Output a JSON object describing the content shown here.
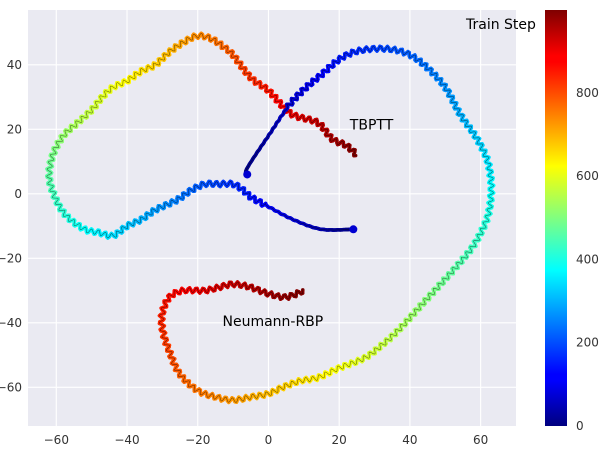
{
  "chart_data": {
    "type": "scatter",
    "title": "",
    "xlabel": "",
    "ylabel": "",
    "xlim": [
      -68,
      70
    ],
    "ylim": [
      -72,
      57
    ],
    "x_ticks": [
      -60,
      -40,
      -20,
      0,
      20,
      40,
      60
    ],
    "y_ticks": [
      -60,
      -40,
      -20,
      0,
      20,
      40
    ],
    "x_tick_labels": [
      "−60",
      "−40",
      "−20",
      "0",
      "20",
      "40",
      "60"
    ],
    "y_tick_labels": [
      "−60",
      "−40",
      "−20",
      "0",
      "20",
      "40"
    ],
    "grid": true,
    "colormap": "jet",
    "colorbar": {
      "label": "Train Step",
      "range": [
        0,
        999
      ],
      "ticks": [
        0,
        200,
        400,
        600,
        800
      ],
      "tick_labels": [
        "0",
        "200",
        "400",
        "600",
        "800"
      ]
    },
    "annotations": [
      {
        "text": "TBPTT",
        "x": 23,
        "y": 20
      },
      {
        "text": "Neumann-RBP",
        "x": -13,
        "y": -41
      }
    ],
    "series": [
      {
        "name": "TBPTT",
        "label": "TBPTT",
        "step_range": [
          0,
          999
        ],
        "x": [
          24,
          15,
          7,
          0,
          -5,
          -7,
          -10,
          -14,
          -18,
          -22,
          -26,
          -32,
          -36,
          -40,
          -44,
          -48,
          -52,
          -57,
          -60,
          -62,
          -61,
          -58,
          -54,
          -50,
          -47,
          -44,
          -40,
          -36,
          -32,
          -28,
          -24,
          -20,
          -16,
          -12,
          -10,
          -5,
          0,
          5,
          8,
          14,
          18,
          22,
          25
        ],
        "y": [
          -11,
          -11,
          -8,
          -4,
          -1,
          1,
          3,
          3,
          3,
          1,
          -2,
          -5,
          -8,
          -10,
          -13,
          -12,
          -11,
          -7,
          -2,
          5,
          12,
          18,
          22,
          26,
          30,
          33,
          35,
          38,
          40,
          44,
          47,
          49,
          48,
          45,
          43,
          36,
          32,
          26,
          24,
          22,
          17,
          15,
          12
        ]
      },
      {
        "name": "Neumann-RBP",
        "label": "Neumann-RBP",
        "step_range": [
          0,
          999
        ],
        "x": [
          -6,
          -6,
          0,
          7,
          15,
          22,
          30,
          38,
          44,
          50,
          54,
          59,
          62,
          63,
          62,
          58,
          52,
          47,
          42,
          37,
          32,
          27,
          20,
          14,
          9,
          4,
          0,
          -5,
          -10,
          -15,
          -20,
          -25,
          -28,
          -30,
          -30,
          -28,
          -24,
          -18,
          -14,
          -10,
          -5,
          0,
          5,
          10
        ],
        "y": [
          6,
          8,
          18,
          29,
          37,
          43,
          45,
          44,
          40,
          33,
          25,
          17,
          10,
          2,
          -7,
          -16,
          -24,
          -30,
          -36,
          -42,
          -47,
          -51,
          -54,
          -57,
          -58,
          -60,
          -62,
          -63,
          -64,
          -63,
          -61,
          -56,
          -49,
          -42,
          -37,
          -32,
          -30,
          -30,
          -29,
          -28,
          -29,
          -31,
          -32,
          -30
        ]
      }
    ]
  }
}
